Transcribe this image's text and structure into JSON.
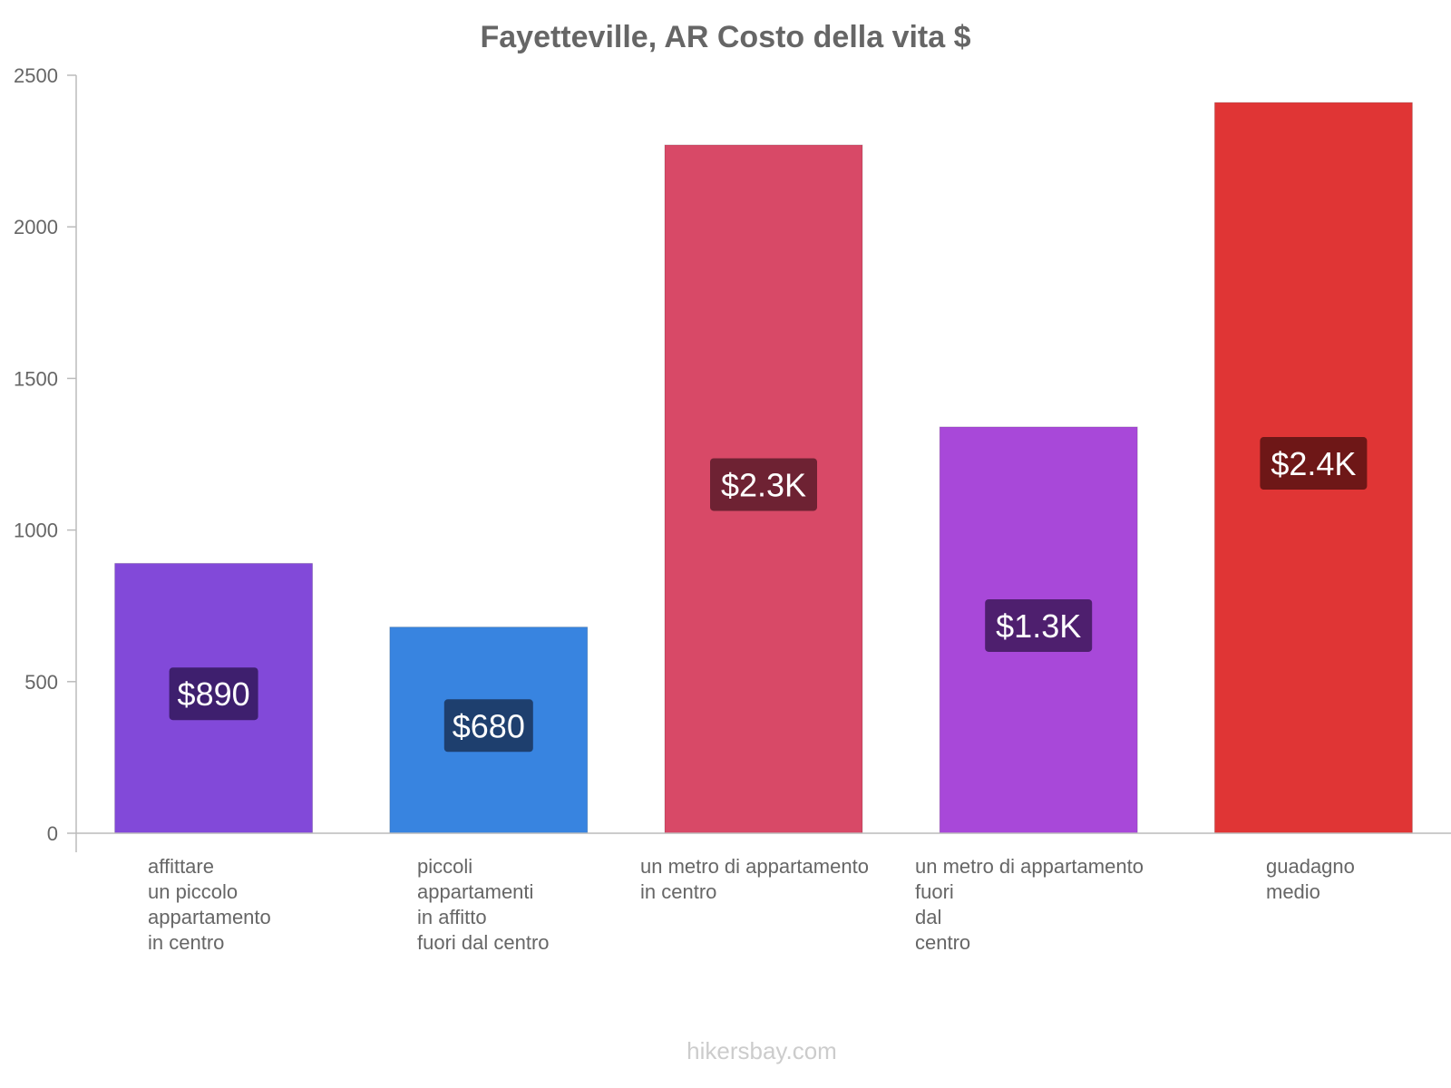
{
  "chart_data": {
    "type": "bar",
    "title": "Fayetteville, AR Costo della vita $",
    "xlabel": "",
    "ylabel": "",
    "ylim": [
      0,
      2500
    ],
    "yticks": [
      0,
      500,
      1000,
      1500,
      2000,
      2500
    ],
    "grid": false,
    "categories": [
      "affittare un piccolo appartamento in centro",
      "piccoli appartamenti in affitto fuori dal centro",
      "un metro di appartamento in centro",
      "un metro di appartamento fuori dal centro",
      "guadagno medio"
    ],
    "category_lines": [
      [
        "affittare",
        "un piccolo",
        "appartamento",
        "in centro"
      ],
      [
        "piccoli",
        "appartamenti",
        "in affitto",
        "fuori dal centro"
      ],
      [
        "un metro di appartamento",
        "in centro"
      ],
      [
        "un metro di appartamento",
        "fuori",
        "dal",
        "centro"
      ],
      [
        "guadagno",
        "medio"
      ]
    ],
    "values": [
      890,
      680,
      2270,
      1340,
      2410
    ],
    "data_labels": [
      "$890",
      "$680",
      "$2.3K",
      "$1.3K",
      "$2.4K"
    ],
    "colors": [
      "#8249d9",
      "#3884e0",
      "#d84967",
      "#a848d9",
      "#e03535"
    ],
    "label_bg_colors": [
      "#3e1f6e",
      "#1e3f6e",
      "#6e2233",
      "#4e1f6e",
      "#6e1717"
    ]
  },
  "watermark": "hikersbay.com"
}
